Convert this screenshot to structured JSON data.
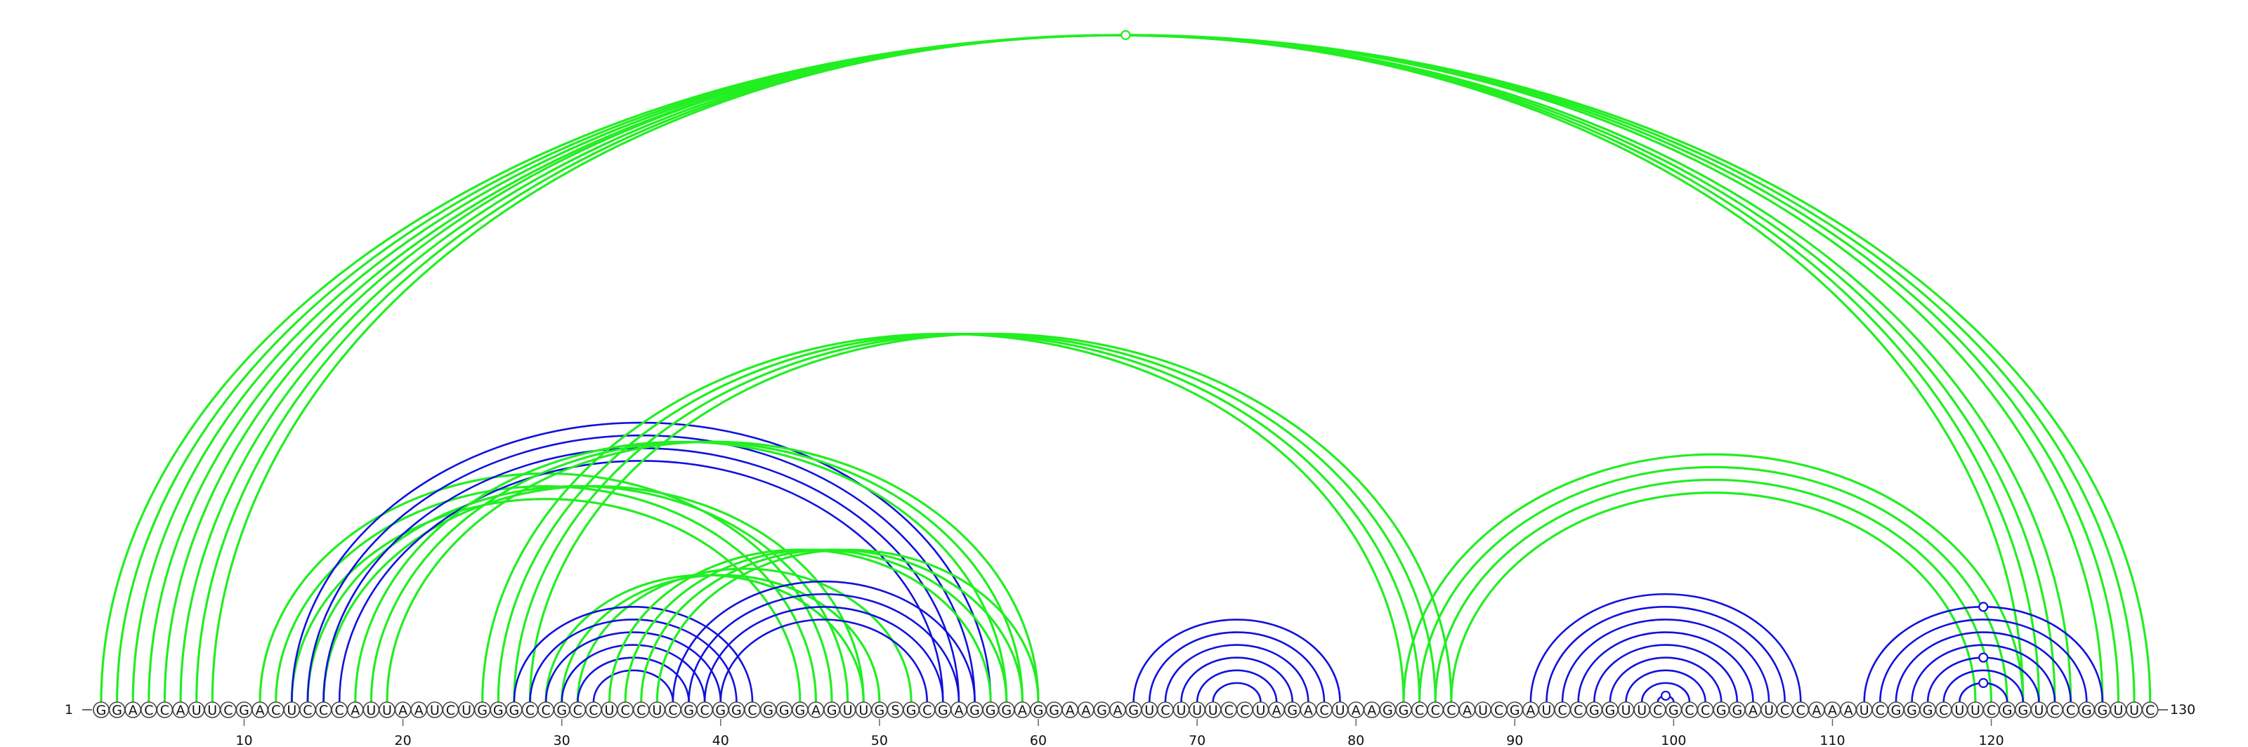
{
  "sequence": "GGACCAUUCGACUCCCAUUAAUCUGGGCCGCCUCCUCGCGGCGGGAGUUGSGCGAGGGAGGAAGAGUCUUUCCUAGACUAAGGCCCAUCGAUCCGGUUCGCCGGAUCCAAAUCGGGCUUCGGUCCGGUUC",
  "start_label": "1",
  "end_label": "130",
  "ticks": [
    10,
    20,
    30,
    40,
    50,
    60,
    70,
    80,
    90,
    100,
    110,
    120
  ],
  "colors": {
    "green": "#22ee22",
    "blue": "#1111dd"
  },
  "pairs": [
    {
      "i": 1,
      "j": 130,
      "color": "green"
    },
    {
      "i": 2,
      "j": 129,
      "color": "green"
    },
    {
      "i": 3,
      "j": 128,
      "color": "green"
    },
    {
      "i": 4,
      "j": 127,
      "color": "green"
    },
    {
      "i": 5,
      "j": 125,
      "color": "green"
    },
    {
      "i": 6,
      "j": 124,
      "color": "green"
    },
    {
      "i": 7,
      "j": 123,
      "color": "green"
    },
    {
      "i": 8,
      "j": 122,
      "color": "green"
    },
    {
      "i": 11,
      "j": 47,
      "color": "green"
    },
    {
      "i": 12,
      "j": 46,
      "color": "green"
    },
    {
      "i": 13,
      "j": 45,
      "color": "green"
    },
    {
      "i": 14,
      "j": 48,
      "color": "green"
    },
    {
      "i": 15,
      "j": 49,
      "color": "green"
    },
    {
      "i": 13,
      "j": 57,
      "color": "blue"
    },
    {
      "i": 14,
      "j": 56,
      "color": "blue"
    },
    {
      "i": 15,
      "j": 55,
      "color": "blue"
    },
    {
      "i": 16,
      "j": 54,
      "color": "blue"
    },
    {
      "i": 17,
      "j": 58,
      "color": "green"
    },
    {
      "i": 18,
      "j": 59,
      "color": "green"
    },
    {
      "i": 19,
      "j": 60,
      "color": "green"
    },
    {
      "i": 25,
      "j": 83,
      "color": "green"
    },
    {
      "i": 26,
      "j": 84,
      "color": "green"
    },
    {
      "i": 27,
      "j": 85,
      "color": "green"
    },
    {
      "i": 28,
      "j": 86,
      "color": "green"
    },
    {
      "i": 29,
      "j": 49,
      "color": "green"
    },
    {
      "i": 30,
      "j": 50,
      "color": "green"
    },
    {
      "i": 31,
      "j": 52,
      "color": "green"
    },
    {
      "i": 27,
      "j": 42,
      "color": "blue"
    },
    {
      "i": 28,
      "j": 41,
      "color": "blue"
    },
    {
      "i": 29,
      "j": 40,
      "color": "blue"
    },
    {
      "i": 30,
      "j": 39,
      "color": "blue"
    },
    {
      "i": 31,
      "j": 38,
      "color": "blue"
    },
    {
      "i": 32,
      "j": 37,
      "color": "blue"
    },
    {
      "i": 33,
      "j": 57,
      "color": "green"
    },
    {
      "i": 34,
      "j": 58,
      "color": "green"
    },
    {
      "i": 35,
      "j": 59,
      "color": "green"
    },
    {
      "i": 36,
      "j": 60,
      "color": "green"
    },
    {
      "i": 37,
      "j": 56,
      "color": "blue"
    },
    {
      "i": 38,
      "j": 55,
      "color": "blue"
    },
    {
      "i": 39,
      "j": 54,
      "color": "blue"
    },
    {
      "i": 40,
      "j": 53,
      "color": "blue"
    },
    {
      "i": 66,
      "j": 79,
      "color": "blue"
    },
    {
      "i": 67,
      "j": 78,
      "color": "blue"
    },
    {
      "i": 68,
      "j": 77,
      "color": "blue"
    },
    {
      "i": 69,
      "j": 76,
      "color": "blue"
    },
    {
      "i": 70,
      "j": 75,
      "color": "blue"
    },
    {
      "i": 71,
      "j": 74,
      "color": "blue"
    },
    {
      "i": 83,
      "j": 122,
      "color": "green"
    },
    {
      "i": 84,
      "j": 121,
      "color": "green"
    },
    {
      "i": 85,
      "j": 120,
      "color": "green"
    },
    {
      "i": 86,
      "j": 119,
      "color": "green"
    },
    {
      "i": 91,
      "j": 108,
      "color": "blue"
    },
    {
      "i": 92,
      "j": 107,
      "color": "blue"
    },
    {
      "i": 93,
      "j": 106,
      "color": "blue"
    },
    {
      "i": 94,
      "j": 105,
      "color": "blue"
    },
    {
      "i": 95,
      "j": 104,
      "color": "blue"
    },
    {
      "i": 96,
      "j": 103,
      "color": "blue"
    },
    {
      "i": 97,
      "j": 102,
      "color": "blue"
    },
    {
      "i": 98,
      "j": 101,
      "color": "blue"
    },
    {
      "i": 99,
      "j": 100,
      "color": "blue"
    },
    {
      "i": 112,
      "j": 127,
      "color": "blue"
    },
    {
      "i": 113,
      "j": 126,
      "color": "blue"
    },
    {
      "i": 114,
      "j": 125,
      "color": "blue"
    },
    {
      "i": 115,
      "j": 124,
      "color": "blue"
    },
    {
      "i": 116,
      "j": 123,
      "color": "blue"
    },
    {
      "i": 117,
      "j": 122,
      "color": "blue"
    },
    {
      "i": 118,
      "j": 121,
      "color": "blue"
    }
  ],
  "markers": [
    {
      "i": 2,
      "j": 129,
      "color": "green"
    },
    {
      "i": 99,
      "j": 100,
      "color": "blue"
    },
    {
      "i": 118,
      "j": 121,
      "color": "blue"
    },
    {
      "i": 116,
      "j": 123,
      "color": "blue"
    },
    {
      "i": 112,
      "j": 127,
      "color": "blue"
    }
  ]
}
